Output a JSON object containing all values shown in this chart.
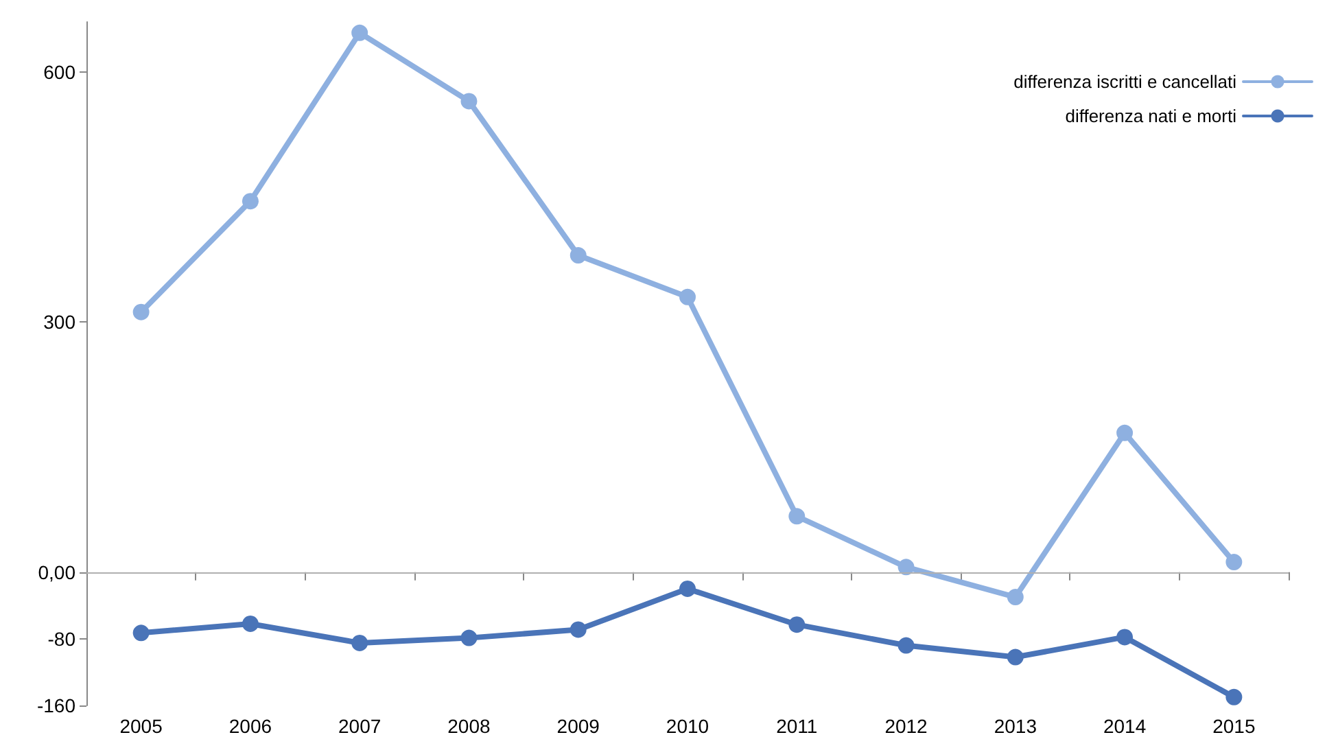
{
  "chart_data": {
    "type": "line",
    "categories": [
      "2005",
      "2006",
      "2007",
      "2008",
      "2009",
      "2010",
      "2011",
      "2012",
      "2013",
      "2014",
      "2015"
    ],
    "series": [
      {
        "name": "differenza iscritti e cancellati",
        "color": "#8eb0e0",
        "values": [
          312,
          445,
          647,
          565,
          380,
          330,
          67,
          6,
          -30,
          167,
          12
        ]
      },
      {
        "name": "differenza nati e morti",
        "color": "#4a74b8",
        "values": [
          -73,
          -62,
          -85,
          -79,
          -69,
          -20,
          -63,
          -88,
          -102,
          -78,
          -150
        ]
      }
    ],
    "ylim": [
      -160,
      660
    ],
    "yticks": [
      -160,
      -80,
      {
        "value": 0,
        "label": "0,00"
      },
      300,
      600
    ],
    "ref_lines": [
      {
        "axis": "y",
        "value": 0,
        "label": null,
        "color": "#b0b0b0"
      }
    ],
    "legend": "top right",
    "marker": "circle",
    "line_style": "solid",
    "grid": false
  }
}
